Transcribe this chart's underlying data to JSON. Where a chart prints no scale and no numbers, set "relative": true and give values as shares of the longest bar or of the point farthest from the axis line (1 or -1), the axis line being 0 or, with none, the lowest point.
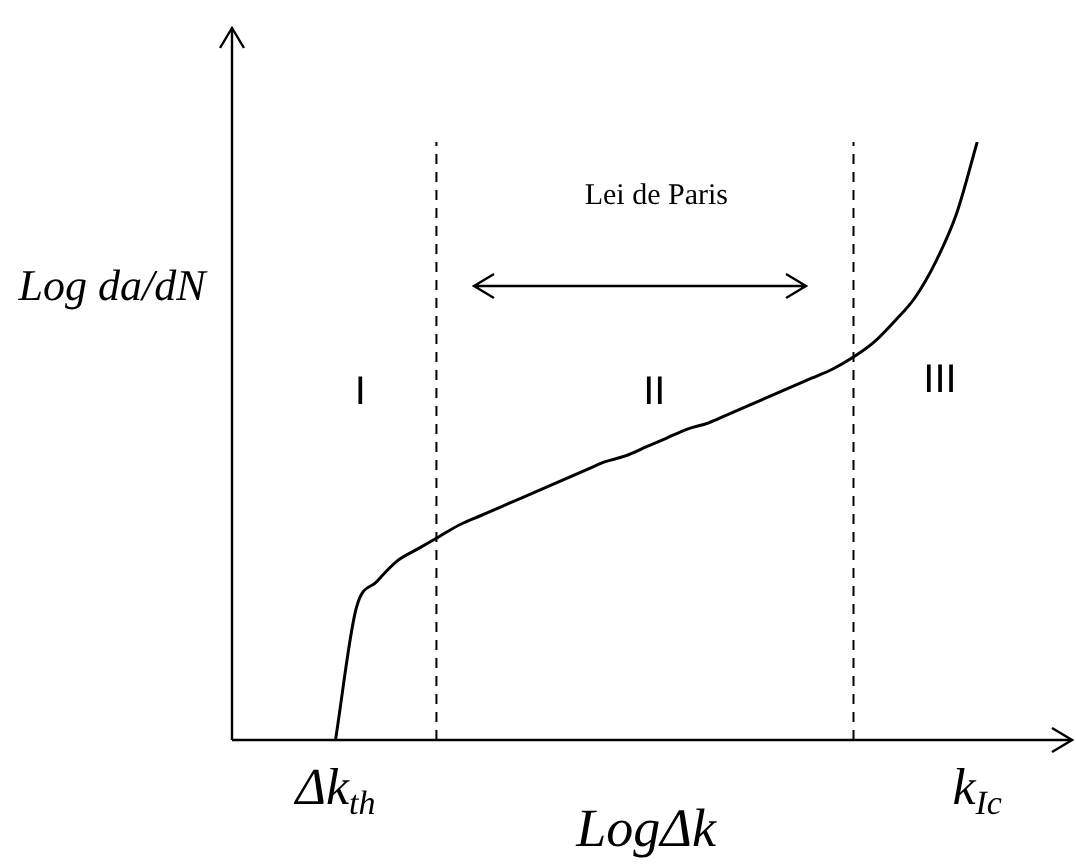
{
  "chart_data": {
    "type": "line",
    "relative": true,
    "xlabel": "LogΔk",
    "ylabel": "Log da/dN",
    "categories": [
      null,
      null,
      null,
      null,
      null,
      "Δk$_{th}$",
      null,
      null,
      null,
      null,
      null,
      null,
      null,
      null,
      null,
      null,
      null,
      null,
      null,
      null,
      null,
      null,
      null,
      null,
      null,
      null,
      null,
      null,
      null,
      null,
      null,
      null,
      null,
      null,
      null,
      null,
      "k$_{Ic}$",
      null,
      null,
      null,
      null
    ],
    "series": [
      {
        "color": "#000000",
        "values": [
          null,
          null,
          null,
          null,
          null,
          0,
          0.22,
          0.265,
          0.3,
          0.32,
          0.34,
          0.36,
          0.375,
          0.39,
          0.405,
          0.42,
          0.435,
          0.45,
          0.465,
          0.475,
          0.49,
          0.505,
          0.52,
          0.53,
          0.545,
          0.56,
          0.575,
          0.59,
          0.605,
          0.62,
          0.64,
          0.665,
          0.7,
          0.74,
          0.8,
          0.88,
          1,
          null,
          null,
          null,
          null
        ]
      }
    ],
    "annotations": [
      "Lei de Paris",
      "I",
      "II",
      "III"
    ],
    "grid": false,
    "legend": false,
    "marker": "none",
    "line_style": "solid"
  }
}
